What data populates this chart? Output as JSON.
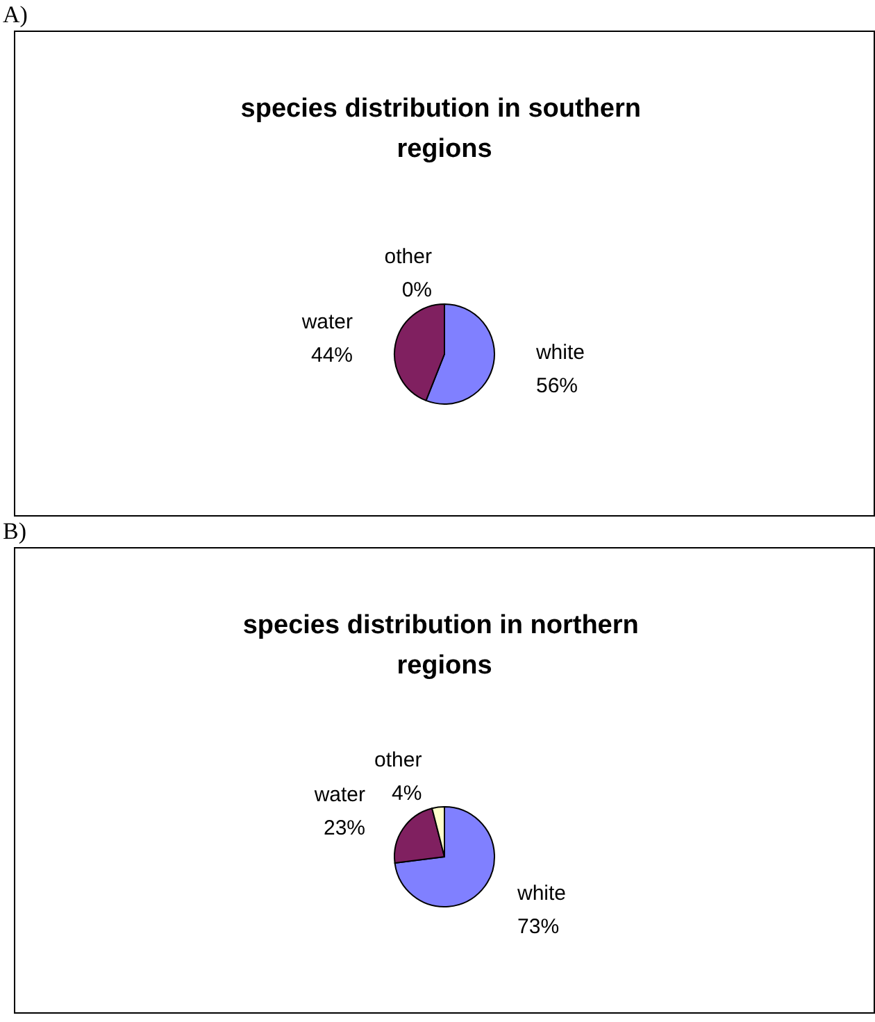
{
  "chart_data": [
    {
      "type": "pie",
      "title": "species distribution in southern regions",
      "annotations": [
        "A)"
      ],
      "categories": [
        "white",
        "water",
        "other"
      ],
      "values": [
        56,
        44,
        0
      ],
      "value_labels": [
        "56%",
        "44%",
        "0%"
      ],
      "colors": [
        "#8080ff",
        "#802060",
        "#ffffcc"
      ],
      "legend": false
    },
    {
      "type": "pie",
      "title": "species distribution in northern regions",
      "annotations": [
        "B)"
      ],
      "categories": [
        "white",
        "water",
        "other"
      ],
      "values": [
        73,
        23,
        4
      ],
      "value_labels": [
        "73%",
        "23%",
        "4%"
      ],
      "colors": [
        "#8080ff",
        "#802060",
        "#ffffcc"
      ],
      "legend": false
    }
  ]
}
